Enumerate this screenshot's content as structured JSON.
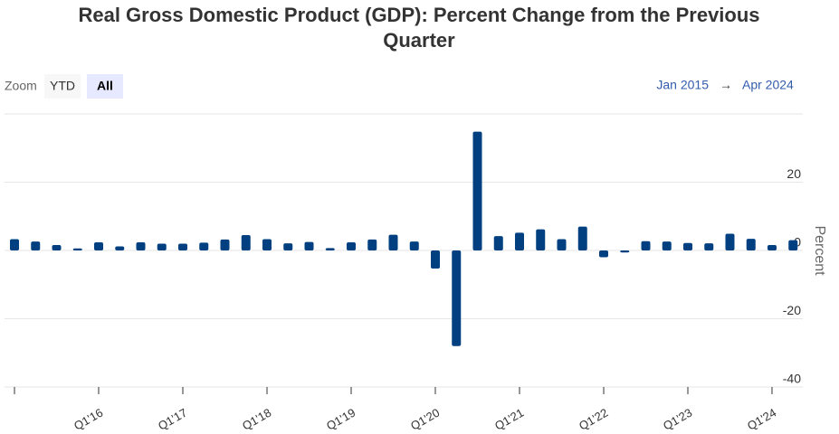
{
  "chart_data": {
    "type": "bar",
    "title": "Real Gross Domestic Product (GDP): Percent Change from the Previous Quarter",
    "zoom": {
      "label": "Zoom",
      "buttons": [
        "YTD",
        "All"
      ],
      "active": 1
    },
    "range": {
      "from": "Jan 2015",
      "arrow": "→",
      "to": "Apr 2024"
    },
    "y_label": "Percent",
    "color": "#004080",
    "categories": [
      null,
      null,
      null,
      null,
      "Q1'16",
      null,
      null,
      null,
      "Q1'17",
      null,
      null,
      null,
      "Q1'18",
      null,
      null,
      null,
      "Q1'19",
      null,
      null,
      null,
      "Q1'20",
      null,
      null,
      null,
      "Q1'21",
      null,
      null,
      null,
      "Q1'22",
      null,
      null,
      null,
      "Q1'23",
      null,
      null,
      null,
      "Q1'24",
      null
    ],
    "values": [
      3.3,
      2.6,
      1.6,
      0.6,
      2.4,
      1.2,
      2.4,
      2.0,
      2.0,
      2.3,
      3.2,
      4.5,
      3.3,
      2.1,
      2.5,
      0.7,
      2.4,
      3.2,
      4.6,
      2.6,
      -5.3,
      -28.0,
      34.8,
      4.2,
      5.2,
      6.2,
      3.3,
      7.0,
      -2.0,
      -0.6,
      2.7,
      2.6,
      2.2,
      2.1,
      4.9,
      3.4,
      1.6,
      3.0
    ],
    "ylim": [
      -40,
      40
    ],
    "yticks": [
      -40,
      -20,
      0,
      20
    ],
    "grid": true
  }
}
